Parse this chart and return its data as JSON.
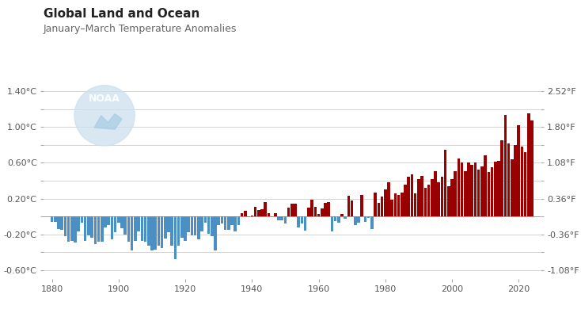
{
  "title": "Global Land and Ocean",
  "subtitle": "January–March Temperature Anomalies",
  "background_color": "#ffffff",
  "bar_color_positive": "#990000",
  "bar_color_negative": "#4a90c4",
  "grid_color": "#cccccc",
  "yticks_c": [
    -0.6,
    -0.4,
    -0.2,
    0.0,
    0.2,
    0.4,
    0.6,
    0.8,
    1.0,
    1.2,
    1.4
  ],
  "ytick_labels_c": [
    "-0.60°C",
    "",
    "-0.20°C",
    "",
    "0.20°C",
    "",
    "0.60°C",
    "",
    "1.00°C",
    "",
    "1.40°C"
  ],
  "ytick_labels_f": [
    "-1.08°F",
    "",
    "-0.36°F",
    "",
    "0.36°F",
    "",
    "1.08°F",
    "",
    "1.80°F",
    "",
    "2.52°F"
  ],
  "ylim": [
    -0.7,
    1.5
  ],
  "xlim": [
    1877.5,
    2026.5
  ],
  "xticks": [
    1880,
    1900,
    1920,
    1940,
    1960,
    1980,
    2000,
    2020
  ],
  "years": [
    1880,
    1881,
    1882,
    1883,
    1884,
    1885,
    1886,
    1887,
    1888,
    1889,
    1890,
    1891,
    1892,
    1893,
    1894,
    1895,
    1896,
    1897,
    1898,
    1899,
    1900,
    1901,
    1902,
    1903,
    1904,
    1905,
    1906,
    1907,
    1908,
    1909,
    1910,
    1911,
    1912,
    1913,
    1914,
    1915,
    1916,
    1917,
    1918,
    1919,
    1920,
    1921,
    1922,
    1923,
    1924,
    1925,
    1926,
    1927,
    1928,
    1929,
    1930,
    1931,
    1932,
    1933,
    1934,
    1935,
    1936,
    1937,
    1938,
    1939,
    1940,
    1941,
    1942,
    1943,
    1944,
    1945,
    1946,
    1947,
    1948,
    1949,
    1950,
    1951,
    1952,
    1953,
    1954,
    1955,
    1956,
    1957,
    1958,
    1959,
    1960,
    1961,
    1962,
    1963,
    1964,
    1965,
    1966,
    1967,
    1968,
    1969,
    1970,
    1971,
    1972,
    1973,
    1974,
    1975,
    1976,
    1977,
    1978,
    1979,
    1980,
    1981,
    1982,
    1983,
    1984,
    1985,
    1986,
    1987,
    1988,
    1989,
    1990,
    1991,
    1992,
    1993,
    1994,
    1995,
    1996,
    1997,
    1998,
    1999,
    2000,
    2001,
    2002,
    2003,
    2004,
    2005,
    2006,
    2007,
    2008,
    2009,
    2010,
    2011,
    2012,
    2013,
    2014,
    2015,
    2016,
    2017,
    2018,
    2019,
    2020,
    2021,
    2022,
    2023,
    2024
  ],
  "anomalies": [
    -0.06,
    -0.06,
    -0.14,
    -0.15,
    -0.22,
    -0.28,
    -0.27,
    -0.29,
    -0.17,
    -0.07,
    -0.27,
    -0.21,
    -0.24,
    -0.31,
    -0.28,
    -0.28,
    -0.12,
    -0.1,
    -0.26,
    -0.18,
    -0.07,
    -0.13,
    -0.2,
    -0.28,
    -0.38,
    -0.27,
    -0.17,
    -0.27,
    -0.28,
    -0.33,
    -0.38,
    -0.37,
    -0.33,
    -0.35,
    -0.25,
    -0.18,
    -0.33,
    -0.48,
    -0.33,
    -0.24,
    -0.27,
    -0.18,
    -0.21,
    -0.21,
    -0.26,
    -0.17,
    -0.07,
    -0.19,
    -0.22,
    -0.38,
    -0.1,
    -0.08,
    -0.15,
    -0.15,
    -0.1,
    -0.17,
    -0.1,
    0.04,
    0.06,
    -0.01,
    0.01,
    0.11,
    0.07,
    0.08,
    0.16,
    0.04,
    -0.01,
    0.04,
    -0.04,
    -0.04,
    -0.08,
    0.1,
    0.14,
    0.14,
    -0.12,
    -0.08,
    -0.16,
    0.1,
    0.19,
    0.11,
    0.03,
    0.09,
    0.15,
    0.16,
    -0.17,
    -0.05,
    -0.07,
    0.03,
    -0.03,
    0.23,
    0.18,
    -0.1,
    -0.07,
    0.24,
    -0.06,
    -0.02,
    -0.14,
    0.27,
    0.15,
    0.22,
    0.3,
    0.38,
    0.19,
    0.26,
    0.24,
    0.27,
    0.36,
    0.44,
    0.47,
    0.26,
    0.42,
    0.45,
    0.32,
    0.36,
    0.42,
    0.51,
    0.38,
    0.44,
    0.75,
    0.34,
    0.42,
    0.51,
    0.65,
    0.6,
    0.51,
    0.6,
    0.58,
    0.6,
    0.52,
    0.56,
    0.68,
    0.5,
    0.55,
    0.61,
    0.62,
    0.85,
    1.14,
    0.82,
    0.64,
    0.8,
    1.02,
    0.78,
    0.72,
    1.15,
    1.07
  ],
  "noaa_logo_color": "#cce0ee",
  "title_fontsize": 11,
  "subtitle_fontsize": 9,
  "tick_fontsize": 8
}
